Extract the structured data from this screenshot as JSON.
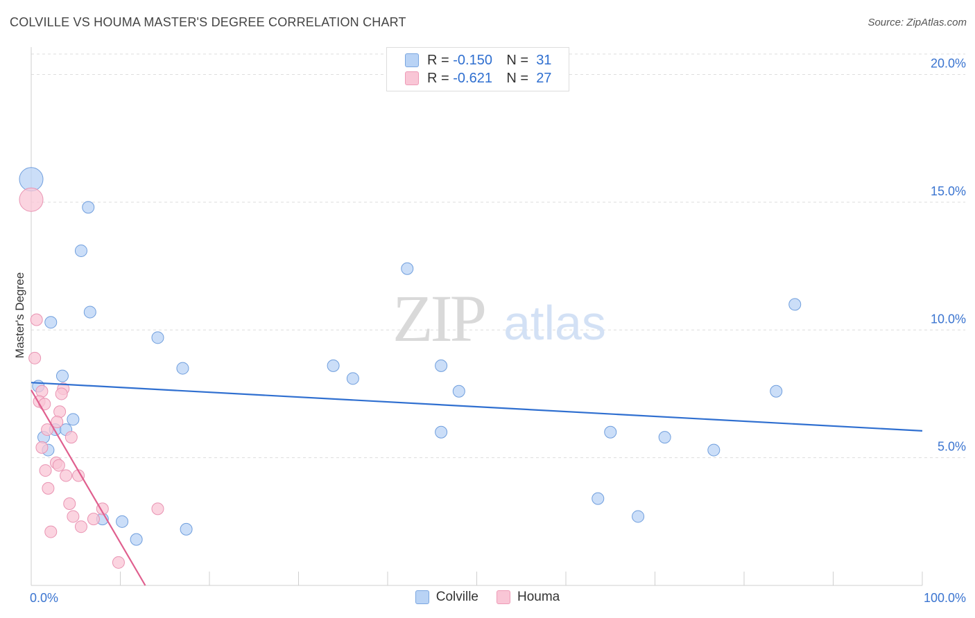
{
  "title": "COLVILLE VS HOUMA MASTER'S DEGREE CORRELATION CHART",
  "source": "Source: ZipAtlas.com",
  "watermark": {
    "zip": "ZIP",
    "atlas": "atlas"
  },
  "legend": {
    "rows": [
      {
        "name": "Colville",
        "r_label": "R =",
        "r_value": "-0.150",
        "n_label": "N =",
        "n_value": "31",
        "fill": "#b9d3f5",
        "stroke": "#7aa6e0"
      },
      {
        "name": "Houma",
        "r_label": "R =",
        "r_value": "-0.621",
        "n_label": "N =",
        "n_value": "27",
        "fill": "#f9c6d6",
        "stroke": "#ee9ab6"
      }
    ]
  },
  "colors": {
    "colville_fill": "#b9d3f5",
    "colville_stroke": "#6f9edd",
    "colville_line": "#2f6fd0",
    "houma_fill": "#f9c6d6",
    "houma_stroke": "#e993b2",
    "houma_line": "#e05f8e",
    "tick_label": "#3a74d0",
    "grid": "#dddddd"
  },
  "chart_data": {
    "type": "scatter",
    "title": "COLVILLE VS HOUMA MASTER'S DEGREE CORRELATION CHART",
    "xlabel": "",
    "ylabel": "Master's Degree",
    "xlim": [
      0,
      100
    ],
    "ylim": [
      0,
      20.8
    ],
    "x_tick_labels": [
      "0.0%",
      "100.0%"
    ],
    "y_ticks": [
      5,
      10,
      15,
      20
    ],
    "y_tick_labels": [
      "5.0%",
      "10.0%",
      "15.0%",
      "20.0%"
    ],
    "series": [
      {
        "name": "Colville",
        "points": [
          {
            "x": 0.0,
            "y": 15.9,
            "big": true
          },
          {
            "x": 6.4,
            "y": 14.8
          },
          {
            "x": 5.6,
            "y": 13.1
          },
          {
            "x": 6.6,
            "y": 10.7
          },
          {
            "x": 2.2,
            "y": 10.3
          },
          {
            "x": 14.2,
            "y": 9.7
          },
          {
            "x": 17.0,
            "y": 8.5
          },
          {
            "x": 3.5,
            "y": 8.2
          },
          {
            "x": 0.8,
            "y": 7.8
          },
          {
            "x": 4.7,
            "y": 6.5
          },
          {
            "x": 2.7,
            "y": 6.1
          },
          {
            "x": 3.9,
            "y": 6.1
          },
          {
            "x": 1.4,
            "y": 5.8
          },
          {
            "x": 1.9,
            "y": 5.3
          },
          {
            "x": 8.0,
            "y": 2.6
          },
          {
            "x": 10.2,
            "y": 2.5
          },
          {
            "x": 11.8,
            "y": 1.8
          },
          {
            "x": 17.4,
            "y": 2.2
          },
          {
            "x": 42.2,
            "y": 12.4
          },
          {
            "x": 33.9,
            "y": 8.6
          },
          {
            "x": 36.1,
            "y": 8.1
          },
          {
            "x": 46.0,
            "y": 6.0
          },
          {
            "x": 46.0,
            "y": 8.6
          },
          {
            "x": 48.0,
            "y": 7.6
          },
          {
            "x": 63.6,
            "y": 3.4
          },
          {
            "x": 65.0,
            "y": 6.0
          },
          {
            "x": 68.1,
            "y": 2.7
          },
          {
            "x": 71.1,
            "y": 5.8
          },
          {
            "x": 76.6,
            "y": 5.3
          },
          {
            "x": 83.6,
            "y": 7.6
          },
          {
            "x": 85.7,
            "y": 11.0
          }
        ],
        "trend": {
          "x0": 0,
          "y0": 7.94,
          "x1": 100,
          "y1": 6.05
        }
      },
      {
        "name": "Houma",
        "points": [
          {
            "x": 0.0,
            "y": 15.1,
            "big": true
          },
          {
            "x": 0.6,
            "y": 10.4
          },
          {
            "x": 0.4,
            "y": 8.9
          },
          {
            "x": 1.2,
            "y": 7.6
          },
          {
            "x": 3.6,
            "y": 7.7
          },
          {
            "x": 3.4,
            "y": 7.5
          },
          {
            "x": 0.9,
            "y": 7.2
          },
          {
            "x": 1.5,
            "y": 7.1
          },
          {
            "x": 3.2,
            "y": 6.8
          },
          {
            "x": 2.9,
            "y": 6.4
          },
          {
            "x": 1.8,
            "y": 6.1
          },
          {
            "x": 4.5,
            "y": 5.8
          },
          {
            "x": 1.2,
            "y": 5.4
          },
          {
            "x": 2.8,
            "y": 4.8
          },
          {
            "x": 3.1,
            "y": 4.7
          },
          {
            "x": 1.6,
            "y": 4.5
          },
          {
            "x": 3.9,
            "y": 4.3
          },
          {
            "x": 5.3,
            "y": 4.3
          },
          {
            "x": 1.9,
            "y": 3.8
          },
          {
            "x": 4.3,
            "y": 3.2
          },
          {
            "x": 8.0,
            "y": 3.0
          },
          {
            "x": 14.2,
            "y": 3.0
          },
          {
            "x": 4.7,
            "y": 2.7
          },
          {
            "x": 7.0,
            "y": 2.6
          },
          {
            "x": 5.6,
            "y": 2.3
          },
          {
            "x": 2.2,
            "y": 2.1
          },
          {
            "x": 9.8,
            "y": 0.9
          }
        ],
        "trend": {
          "x0": 0,
          "y0": 7.65,
          "x1": 12.8,
          "y1": 0.0
        }
      }
    ],
    "legend_position": "top-center",
    "grid": true
  }
}
